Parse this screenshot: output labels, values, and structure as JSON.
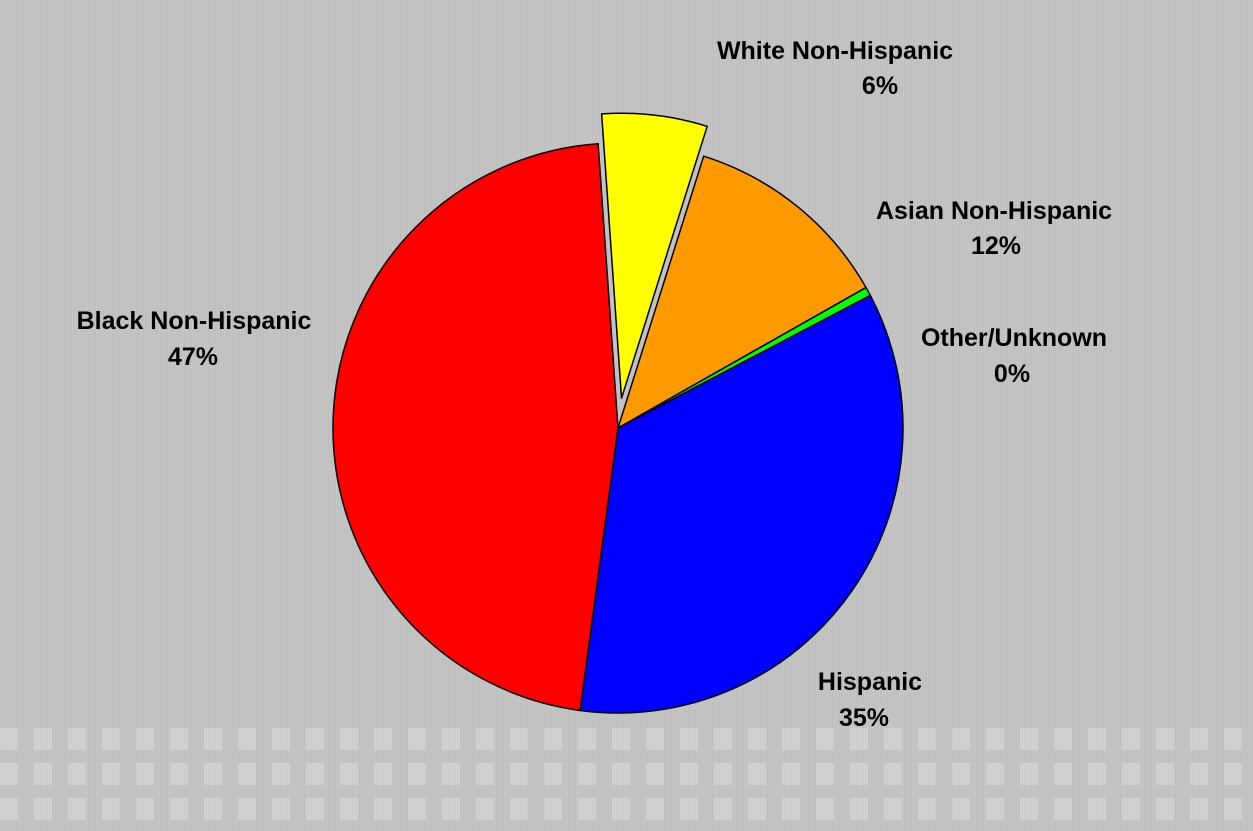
{
  "chart_data": {
    "type": "pie",
    "title": "",
    "slices": [
      {
        "label": "White Non-Hispanic",
        "value_label": "6%",
        "value": 6,
        "color": "#ffff00",
        "exploded": true
      },
      {
        "label": "Asian Non-Hispanic",
        "value_label": "12%",
        "value": 12,
        "color": "#ff9900",
        "exploded": false
      },
      {
        "label": "Other/Unknown",
        "value_label": "0%",
        "value": 0.5,
        "color": "#00ff00",
        "exploded": false
      },
      {
        "label": "Hispanic",
        "value_label": "35%",
        "value": 35,
        "color": "#0000ff",
        "exploded": false
      },
      {
        "label": "Black Non-Hispanic",
        "value_label": "47%",
        "value": 47,
        "color": "#ff0000",
        "exploded": false
      }
    ],
    "start_angle_deg": 0,
    "direction": "clockwise",
    "legend": "none",
    "outline_color": "#000000",
    "background_color": "#c0c0c0"
  }
}
